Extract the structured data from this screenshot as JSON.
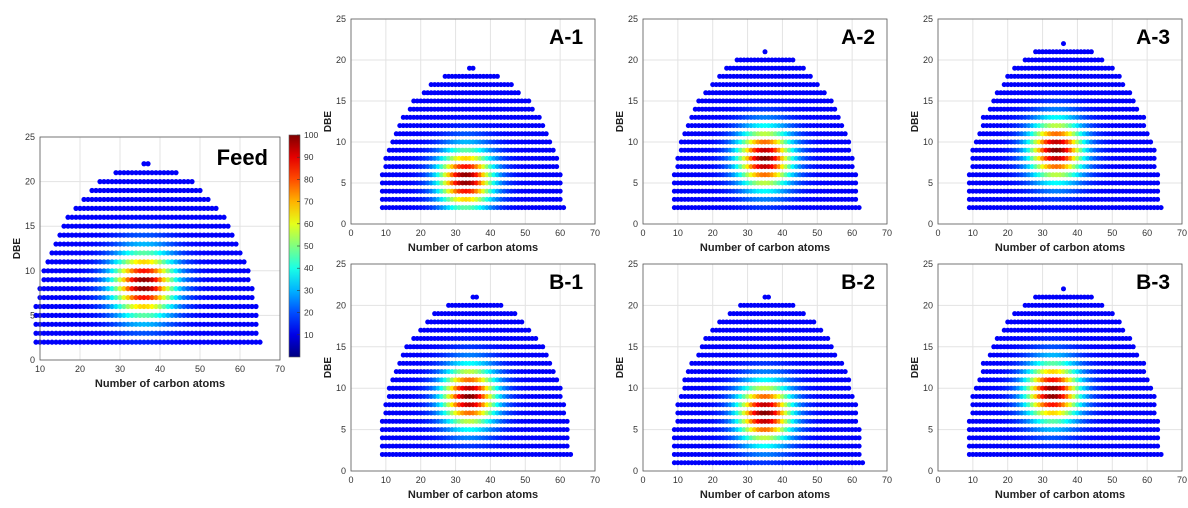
{
  "figure": {
    "colorbar": {
      "ticks": [
        "100",
        "90",
        "80",
        "70",
        "60",
        "50",
        "40",
        "30",
        "20",
        "10"
      ],
      "range": [
        0,
        100
      ],
      "colormap": "jet"
    }
  },
  "chart_data": [
    {
      "type": "scatter",
      "id": "feed",
      "title": "Feed",
      "xlabel": "Number of carbon atoms",
      "ylabel": "DBE",
      "xlim": [
        10,
        70
      ],
      "ylim": [
        0,
        25
      ],
      "xticks": [
        "10",
        "20",
        "30",
        "40",
        "50",
        "60",
        "70"
      ],
      "yticks": [
        "0",
        "5",
        "10",
        "15",
        "20",
        "25"
      ],
      "grid": true,
      "color_scale": "relative abundance 0-100 (jet)",
      "distribution": {
        "c_min": 9,
        "c_max": 65,
        "dbe_min": 2,
        "dbe_max": 22,
        "peak_c": 36,
        "peak_dbe": 8.5,
        "peak_max": 100
      }
    },
    {
      "type": "scatter",
      "id": "A-1",
      "title": "A-1",
      "xlabel": "Number of carbon atoms",
      "ylabel": "DBE",
      "xlim": [
        0,
        70
      ],
      "ylim": [
        0,
        25
      ],
      "xticks": [
        "0",
        "10",
        "20",
        "30",
        "40",
        "50",
        "60",
        "70"
      ],
      "yticks": [
        "0",
        "5",
        "10",
        "15",
        "20",
        "25"
      ],
      "grid": true,
      "color_scale": "relative abundance 0-100 (jet)",
      "distribution": {
        "c_min": 9,
        "c_max": 61,
        "dbe_min": 2,
        "dbe_max": 19,
        "peak_c": 33,
        "peak_dbe": 5.5,
        "peak_max": 100
      }
    },
    {
      "type": "scatter",
      "id": "A-2",
      "title": "A-2",
      "xlabel": "Number of carbon atoms",
      "ylabel": "DBE",
      "xlim": [
        0,
        70
      ],
      "ylim": [
        0,
        25
      ],
      "xticks": [
        "0",
        "10",
        "20",
        "30",
        "40",
        "50",
        "60",
        "70"
      ],
      "yticks": [
        "0",
        "5",
        "10",
        "15",
        "20",
        "25"
      ],
      "grid": true,
      "color_scale": "relative abundance 0-100 (jet)",
      "distribution": {
        "c_min": 9,
        "c_max": 62,
        "dbe_min": 2,
        "dbe_max": 21,
        "peak_c": 35,
        "peak_dbe": 8,
        "peak_max": 100
      }
    },
    {
      "type": "scatter",
      "id": "A-3",
      "title": "A-3",
      "xlabel": "Number of carbon atoms",
      "ylabel": "DBE",
      "xlim": [
        0,
        70
      ],
      "ylim": [
        0,
        25
      ],
      "xticks": [
        "0",
        "10",
        "20",
        "30",
        "40",
        "50",
        "60",
        "70"
      ],
      "yticks": [
        "0",
        "5",
        "10",
        "15",
        "20",
        "25"
      ],
      "grid": true,
      "color_scale": "relative abundance 0-100 (jet)",
      "distribution": {
        "c_min": 9,
        "c_max": 64,
        "dbe_min": 2,
        "dbe_max": 22,
        "peak_c": 34,
        "peak_dbe": 9,
        "peak_max": 100
      }
    },
    {
      "type": "scatter",
      "id": "B-1",
      "title": "B-1",
      "xlabel": "Number of carbon atoms",
      "ylabel": "DBE",
      "xlim": [
        0,
        70
      ],
      "ylim": [
        0,
        25
      ],
      "xticks": [
        "0",
        "10",
        "20",
        "30",
        "40",
        "50",
        "60",
        "70"
      ],
      "yticks": [
        "0",
        "5",
        "10",
        "15",
        "20",
        "25"
      ],
      "grid": true,
      "color_scale": "relative abundance 0-100 (jet)",
      "distribution": {
        "c_min": 9,
        "c_max": 63,
        "dbe_min": 2,
        "dbe_max": 21,
        "peak_c": 34,
        "peak_dbe": 9,
        "peak_max": 100
      }
    },
    {
      "type": "scatter",
      "id": "B-2",
      "title": "B-2",
      "xlabel": "Number of carbon atoms",
      "ylabel": "DBE",
      "xlim": [
        0,
        70
      ],
      "ylim": [
        0,
        25
      ],
      "xticks": [
        "0",
        "10",
        "20",
        "30",
        "40",
        "50",
        "60",
        "70"
      ],
      "yticks": [
        "0",
        "5",
        "10",
        "15",
        "20",
        "25"
      ],
      "grid": true,
      "color_scale": "relative abundance 0-100 (jet)",
      "distribution": {
        "c_min": 9,
        "c_max": 63,
        "dbe_min": 1,
        "dbe_max": 21,
        "peak_c": 35,
        "peak_dbe": 7,
        "peak_max": 100
      }
    },
    {
      "type": "scatter",
      "id": "B-3",
      "title": "B-3",
      "xlabel": "Number of carbon atoms",
      "ylabel": "DBE",
      "xlim": [
        0,
        70
      ],
      "ylim": [
        0,
        25
      ],
      "xticks": [
        "0",
        "10",
        "20",
        "30",
        "40",
        "50",
        "60",
        "70"
      ],
      "yticks": [
        "0",
        "5",
        "10",
        "15",
        "20",
        "25"
      ],
      "grid": true,
      "color_scale": "relative abundance 0-100 (jet)",
      "distribution": {
        "c_min": 9,
        "c_max": 64,
        "dbe_min": 2,
        "dbe_max": 22,
        "peak_c": 33,
        "peak_dbe": 9.5,
        "peak_max": 100
      }
    }
  ]
}
